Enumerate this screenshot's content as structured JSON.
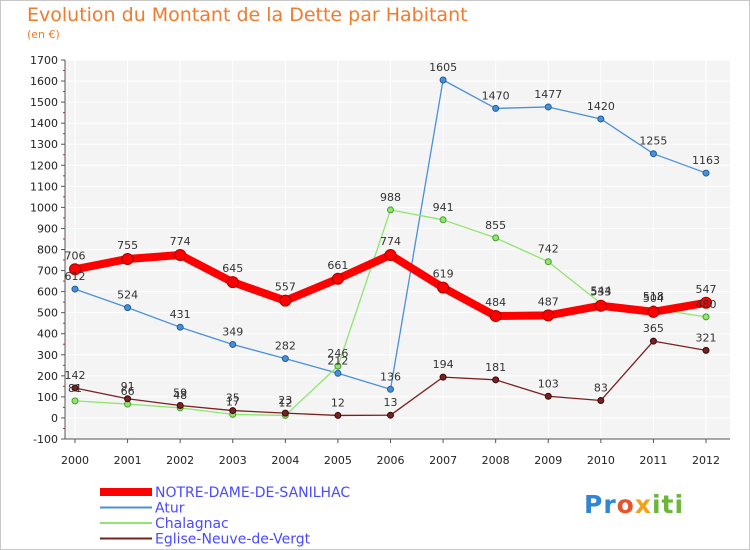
{
  "chart_data": {
    "type": "line",
    "title": "Evolution du Montant de la Dette par Habitant",
    "ylabel": "(en €)",
    "xlabel": "",
    "x": [
      "2000",
      "2001",
      "2002",
      "2003",
      "2004",
      "2005",
      "2006",
      "2007",
      "2008",
      "2009",
      "2010",
      "2011",
      "2012"
    ],
    "ylim": [
      -100,
      1700
    ],
    "yticks": [
      -100,
      0,
      100,
      200,
      300,
      400,
      500,
      600,
      700,
      800,
      900,
      1000,
      1100,
      1200,
      1300,
      1400,
      1500,
      1600,
      1700
    ],
    "grid": true,
    "legend_position": "bottom-left",
    "series": [
      {
        "name": "NOTRE-DAME-DE-SANILHAC",
        "color": "#ff0000",
        "values": [
          706,
          755,
          774,
          645,
          557,
          661,
          774,
          619,
          484,
          487,
          533,
          504,
          547
        ],
        "labels": [
          "706",
          "755",
          "774",
          "645",
          "557",
          "661",
          "774",
          "619",
          "484",
          "487",
          "533",
          "504",
          "547"
        ]
      },
      {
        "name": "Atur",
        "color": "#4a90d9",
        "values": [
          612,
          524,
          431,
          349,
          282,
          212,
          136,
          1605,
          1470,
          1477,
          1420,
          1255,
          1163
        ],
        "labels": [
          "612",
          "524",
          "431",
          "349",
          "282",
          "212",
          "136",
          "1605",
          "1470",
          "1477",
          "1420",
          "1255",
          "1163"
        ]
      },
      {
        "name": "Chalagnac",
        "color": "#8ee66e",
        "values": [
          81,
          66,
          48,
          17,
          12,
          246,
          988,
          941,
          855,
          742,
          544,
          518,
          480
        ],
        "labels": [
          "81",
          "66",
          "48",
          "17",
          "12",
          "246",
          "988",
          "941",
          "855",
          "742",
          "544",
          "518",
          "480"
        ]
      },
      {
        "name": "Eglise-Neuve-de-Vergt",
        "color": "#7a2020",
        "values": [
          142,
          91,
          59,
          35,
          23,
          12,
          13,
          194,
          181,
          103,
          83,
          365,
          321
        ],
        "labels": [
          "142",
          "91",
          "59",
          "35",
          "23",
          "12",
          "13",
          "194",
          "181",
          "103",
          "83",
          "365",
          "321"
        ]
      }
    ]
  },
  "logo": {
    "p1": "Pr",
    "p2": "o",
    "p3": "x",
    "p4": "iti"
  }
}
